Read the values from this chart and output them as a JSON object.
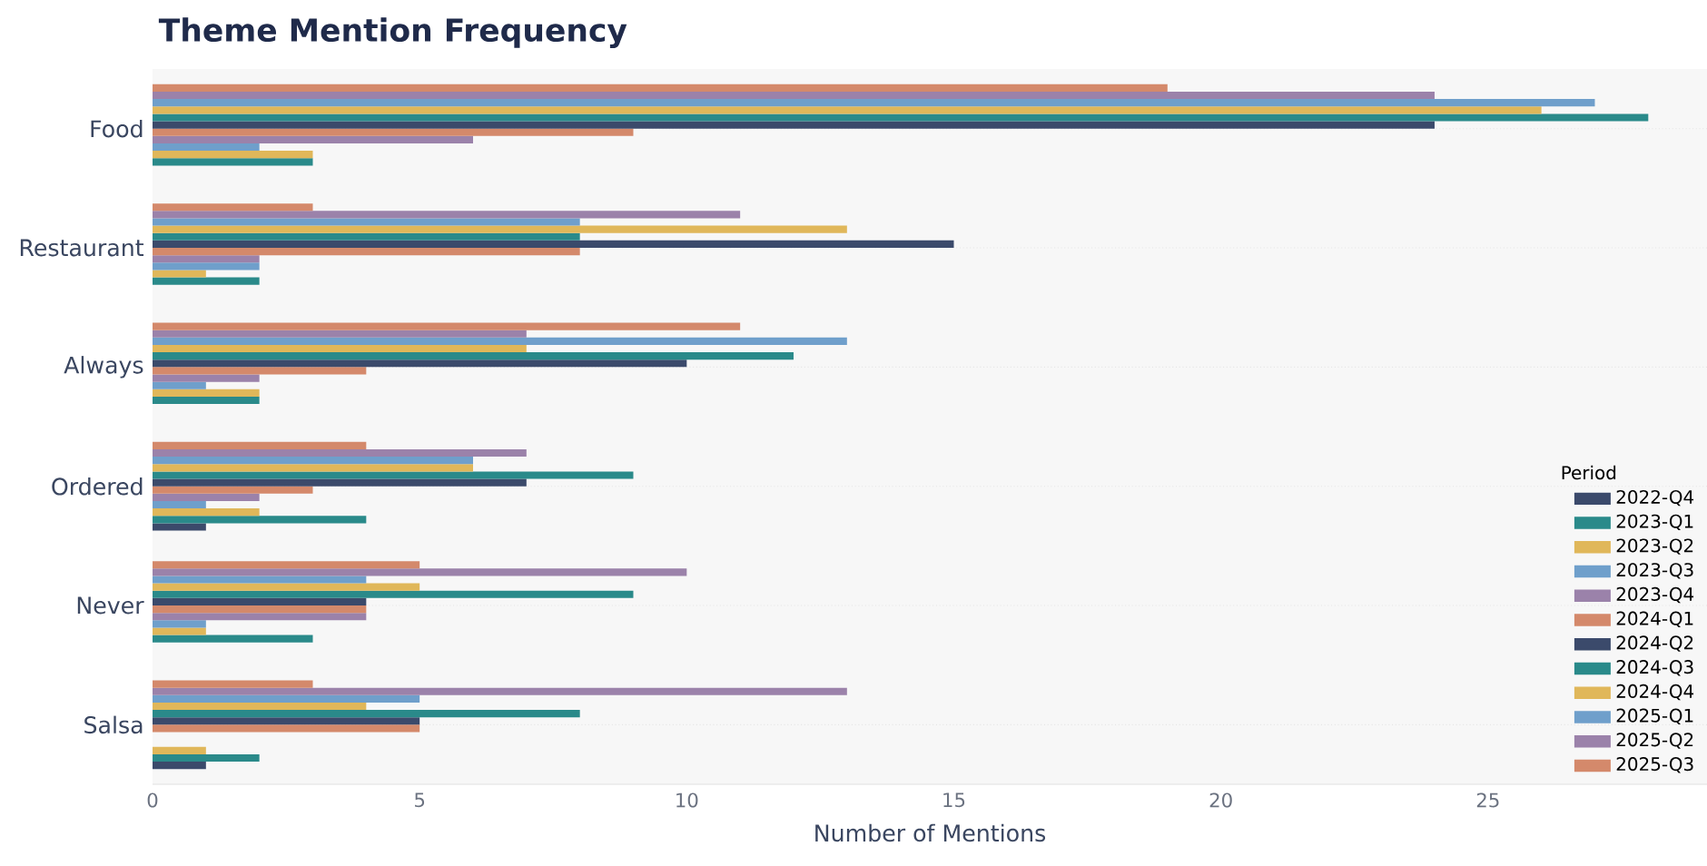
{
  "chart_data": {
    "type": "bar",
    "orientation": "horizontal",
    "title": "Theme Mention Frequency",
    "xlabel": "Number of Mentions",
    "legend_title": "Period",
    "categories": [
      "Food",
      "Restaurant",
      "Always",
      "Ordered",
      "Never",
      "Salsa"
    ],
    "series": [
      {
        "name": "2022-Q4",
        "color": "#3b4a6b",
        "values": [
          0,
          0,
          0,
          1,
          0,
          1
        ]
      },
      {
        "name": "2023-Q1",
        "color": "#2a8a8a",
        "values": [
          3,
          2,
          2,
          4,
          3,
          2
        ]
      },
      {
        "name": "2023-Q2",
        "color": "#e0b75a",
        "values": [
          3,
          1,
          2,
          2,
          1,
          1
        ]
      },
      {
        "name": "2023-Q3",
        "color": "#6f9fcb",
        "values": [
          2,
          2,
          1,
          1,
          1,
          0
        ]
      },
      {
        "name": "2023-Q4",
        "color": "#9b82aa",
        "values": [
          6,
          2,
          2,
          2,
          4,
          0
        ]
      },
      {
        "name": "2024-Q1",
        "color": "#d4896b",
        "values": [
          9,
          8,
          4,
          3,
          4,
          5
        ]
      },
      {
        "name": "2024-Q2",
        "color": "#3b4a6b",
        "values": [
          24,
          15,
          10,
          7,
          4,
          5
        ]
      },
      {
        "name": "2024-Q3",
        "color": "#2a8a8a",
        "values": [
          28,
          8,
          12,
          9,
          9,
          8
        ]
      },
      {
        "name": "2024-Q4",
        "color": "#e0b75a",
        "values": [
          26,
          13,
          7,
          6,
          5,
          4
        ]
      },
      {
        "name": "2025-Q1",
        "color": "#6f9fcb",
        "values": [
          27,
          8,
          13,
          6,
          4,
          5
        ]
      },
      {
        "name": "2025-Q2",
        "color": "#9b82aa",
        "values": [
          24,
          11,
          7,
          7,
          10,
          13
        ]
      },
      {
        "name": "2025-Q3",
        "color": "#d4896b",
        "values": [
          19,
          3,
          11,
          4,
          5,
          3
        ]
      }
    ],
    "xlim": [
      0,
      29.1
    ],
    "xticks": [
      0,
      5,
      10,
      15,
      20,
      25
    ],
    "grid": "y",
    "legend": "right"
  }
}
